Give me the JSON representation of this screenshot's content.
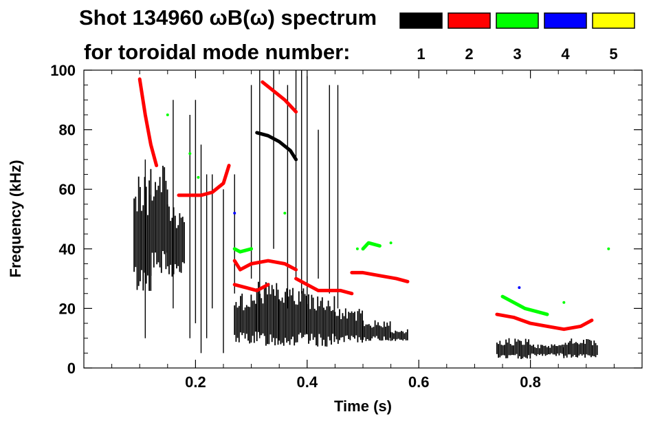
{
  "chart_data": {
    "type": "scatter",
    "title": "Shot 134960 ωB(ω) spectrum",
    "subtitle": "for toroidal mode number:",
    "xlabel": "Time (s)",
    "ylabel": "Frequency (kHz)",
    "xlim": [
      0.0,
      1.0
    ],
    "ylim": [
      0,
      100
    ],
    "xticks": [
      {
        "value": 0.2,
        "label": "0.2"
      },
      {
        "value": 0.4,
        "label": "0.4"
      },
      {
        "value": 0.6,
        "label": "0.6"
      },
      {
        "value": 0.8,
        "label": "0.8"
      }
    ],
    "yticks": [
      {
        "value": 0,
        "label": "0"
      },
      {
        "value": 20,
        "label": "20"
      },
      {
        "value": 40,
        "label": "40"
      },
      {
        "value": 60,
        "label": "60"
      },
      {
        "value": 80,
        "label": "80"
      },
      {
        "value": 100,
        "label": "100"
      }
    ],
    "legend": {
      "placement": "top-right",
      "entries": [
        {
          "label": "1",
          "color": "#000000"
        },
        {
          "label": "2",
          "color": "#ff0000"
        },
        {
          "label": "3",
          "color": "#00ff00"
        },
        {
          "label": "4",
          "color": "#0000ff"
        },
        {
          "label": "5",
          "color": "#ffff00"
        }
      ]
    },
    "series": [
      {
        "name": "1",
        "color": "#000000",
        "bands": [
          {
            "t0": 0.09,
            "t1": 0.12,
            "f0": 25,
            "f1": 65
          },
          {
            "t0": 0.12,
            "t1": 0.15,
            "f0": 30,
            "f1": 68
          },
          {
            "t0": 0.15,
            "t1": 0.18,
            "f0": 30,
            "f1": 55
          },
          {
            "t0": 0.27,
            "t1": 0.31,
            "f0": 8,
            "f1": 25
          },
          {
            "t0": 0.31,
            "t1": 0.35,
            "f0": 7,
            "f1": 29
          },
          {
            "t0": 0.35,
            "t1": 0.4,
            "f0": 7,
            "f1": 27
          },
          {
            "t0": 0.4,
            "t1": 0.45,
            "f0": 7,
            "f1": 25
          },
          {
            "t0": 0.45,
            "t1": 0.5,
            "f0": 8,
            "f1": 20
          },
          {
            "t0": 0.5,
            "t1": 0.55,
            "f0": 9,
            "f1": 16
          },
          {
            "t0": 0.55,
            "t1": 0.58,
            "f0": 9,
            "f1": 13
          },
          {
            "t0": 0.74,
            "t1": 0.8,
            "f0": 3,
            "f1": 10
          },
          {
            "t0": 0.8,
            "t1": 0.86,
            "f0": 4,
            "f1": 8
          },
          {
            "t0": 0.86,
            "t1": 0.92,
            "f0": 3,
            "f1": 10
          }
        ],
        "tracks": [
          {
            "t": [
              0.31,
              0.33,
              0.35,
              0.37,
              0.38
            ],
            "f": [
              79,
              78,
              76,
              73,
              70
            ]
          }
        ],
        "spikes": [
          {
            "t": 0.11,
            "f0": 10,
            "f1": 70
          },
          {
            "t": 0.16,
            "f0": 20,
            "f1": 90
          },
          {
            "t": 0.19,
            "f0": 10,
            "f1": 85
          },
          {
            "t": 0.2,
            "f0": 15,
            "f1": 90
          },
          {
            "t": 0.21,
            "f0": 5,
            "f1": 75
          },
          {
            "t": 0.22,
            "f0": 10,
            "f1": 65
          },
          {
            "t": 0.23,
            "f0": 20,
            "f1": 65
          },
          {
            "t": 0.25,
            "f0": 5,
            "f1": 60
          },
          {
            "t": 0.27,
            "f0": 25,
            "f1": 65
          },
          {
            "t": 0.3,
            "f0": 30,
            "f1": 95
          },
          {
            "t": 0.315,
            "f0": 10,
            "f1": 100
          },
          {
            "t": 0.34,
            "f0": 40,
            "f1": 100
          },
          {
            "t": 0.365,
            "f0": 20,
            "f1": 95
          },
          {
            "t": 0.38,
            "f0": 30,
            "f1": 100
          },
          {
            "t": 0.39,
            "f0": 25,
            "f1": 100
          },
          {
            "t": 0.4,
            "f0": 20,
            "f1": 98
          },
          {
            "t": 0.42,
            "f0": 30,
            "f1": 80
          },
          {
            "t": 0.44,
            "f0": 25,
            "f1": 95
          },
          {
            "t": 0.455,
            "f0": 20,
            "f1": 95
          }
        ]
      },
      {
        "name": "2",
        "color": "#ff0000",
        "tracks": [
          {
            "t": [
              0.1,
              0.11,
              0.12,
              0.13
            ],
            "f": [
              97,
              85,
              75,
              68
            ]
          },
          {
            "t": [
              0.17,
              0.19,
              0.21,
              0.23,
              0.25,
              0.26
            ],
            "f": [
              58,
              58,
              58,
              59,
              62,
              68
            ]
          },
          {
            "t": [
              0.32,
              0.34,
              0.36,
              0.38
            ],
            "f": [
              96,
              93,
              90,
              86
            ]
          },
          {
            "t": [
              0.27,
              0.28,
              0.3,
              0.33,
              0.36,
              0.38
            ],
            "f": [
              36,
              33,
              35,
              36,
              35,
              33
            ]
          },
          {
            "t": [
              0.27,
              0.29,
              0.31,
              0.33
            ],
            "f": [
              28,
              27,
              26,
              28
            ]
          },
          {
            "t": [
              0.38,
              0.4,
              0.42,
              0.44,
              0.46,
              0.48
            ],
            "f": [
              30,
              28,
              26,
              26,
              26,
              25
            ]
          },
          {
            "t": [
              0.48,
              0.5,
              0.53,
              0.56,
              0.58
            ],
            "f": [
              32,
              32,
              31,
              30,
              29
            ]
          },
          {
            "t": [
              0.74,
              0.77,
              0.8,
              0.83,
              0.86,
              0.89,
              0.91
            ],
            "f": [
              18,
              17,
              15,
              14,
              13,
              14,
              16
            ]
          }
        ]
      },
      {
        "name": "3",
        "color": "#00ff00",
        "tracks": [
          {
            "t": [
              0.27,
              0.28,
              0.3
            ],
            "f": [
              40,
              39,
              40
            ]
          },
          {
            "t": [
              0.75,
              0.77,
              0.79,
              0.81,
              0.83
            ],
            "f": [
              24,
              22,
              20,
              19,
              18
            ]
          },
          {
            "t": [
              0.5,
              0.51,
              0.53
            ],
            "f": [
              40,
              42,
              41
            ]
          }
        ],
        "points": [
          [
            0.205,
            64
          ],
          [
            0.19,
            72
          ],
          [
            0.15,
            85
          ],
          [
            0.49,
            40
          ],
          [
            0.55,
            42
          ],
          [
            0.86,
            22
          ],
          [
            0.94,
            40
          ],
          [
            0.36,
            52
          ]
        ]
      },
      {
        "name": "4",
        "color": "#0000ff",
        "points": [
          [
            0.27,
            52
          ],
          [
            0.78,
            27
          ]
        ]
      },
      {
        "name": "5",
        "color": "#ffff00",
        "points": []
      }
    ]
  }
}
